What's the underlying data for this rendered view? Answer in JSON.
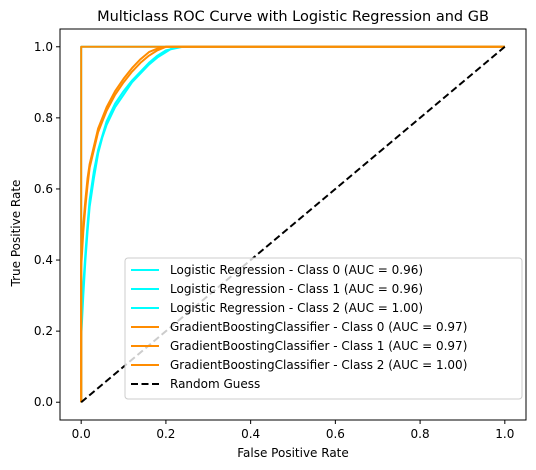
{
  "chart_data": {
    "type": "line",
    "title": "Multiclass ROC Curve with Logistic Regression and GB",
    "xlabel": "False Positive Rate",
    "ylabel": "True Positive Rate",
    "xlim": [
      -0.05,
      1.05
    ],
    "ylim": [
      -0.05,
      1.05
    ],
    "xticks": [
      0.0,
      0.2,
      0.4,
      0.6,
      0.8,
      1.0
    ],
    "yticks": [
      0.0,
      0.2,
      0.4,
      0.6,
      0.8,
      1.0
    ],
    "tick_labels_x": [
      "0.0",
      "0.2",
      "0.4",
      "0.6",
      "0.8",
      "1.0"
    ],
    "tick_labels_y": [
      "0.0",
      "0.2",
      "0.4",
      "0.6",
      "0.8",
      "1.0"
    ],
    "grid": false,
    "legend_position": "lower-right",
    "series": [
      {
        "name": "Logistic Regression - Class 0 (AUC = 0.96)",
        "color": "#00ffff",
        "dash": "solid",
        "x": [
          0.0,
          0.0,
          0.005,
          0.01,
          0.015,
          0.02,
          0.03,
          0.04,
          0.05,
          0.06,
          0.08,
          0.1,
          0.12,
          0.14,
          0.16,
          0.18,
          0.2,
          0.22,
          0.24,
          0.3,
          0.5,
          0.8,
          1.0
        ],
        "y": [
          0.0,
          0.2,
          0.33,
          0.42,
          0.5,
          0.57,
          0.65,
          0.71,
          0.75,
          0.79,
          0.84,
          0.875,
          0.905,
          0.93,
          0.955,
          0.975,
          0.99,
          0.995,
          1.0,
          1.0,
          1.0,
          1.0,
          1.0
        ]
      },
      {
        "name": "Logistic Regression - Class 1 (AUC = 0.96)",
        "color": "#00ffff",
        "dash": "solid",
        "x": [
          0.0,
          0.0,
          0.005,
          0.01,
          0.015,
          0.02,
          0.03,
          0.04,
          0.05,
          0.06,
          0.08,
          0.1,
          0.12,
          0.14,
          0.16,
          0.18,
          0.2,
          0.22,
          0.3,
          0.5,
          0.8,
          1.0
        ],
        "y": [
          0.0,
          0.18,
          0.3,
          0.4,
          0.48,
          0.55,
          0.63,
          0.7,
          0.745,
          0.78,
          0.83,
          0.865,
          0.9,
          0.925,
          0.95,
          0.97,
          0.985,
          1.0,
          1.0,
          1.0,
          1.0,
          1.0
        ]
      },
      {
        "name": "Logistic Regression - Class 2 (AUC = 1.00)",
        "color": "#00ffff",
        "dash": "solid",
        "x": [
          0.0,
          0.0,
          0.0,
          1.0
        ],
        "y": [
          0.0,
          0.995,
          1.0,
          1.0
        ]
      },
      {
        "name": "GradientBoostingClassifier - Class 0 (AUC = 0.97)",
        "color": "#ff8c00",
        "dash": "solid",
        "x": [
          0.0,
          0.0,
          0.005,
          0.01,
          0.015,
          0.02,
          0.03,
          0.04,
          0.05,
          0.06,
          0.08,
          0.1,
          0.12,
          0.14,
          0.16,
          0.18,
          0.2,
          0.3,
          0.5,
          0.8,
          1.0
        ],
        "y": [
          0.0,
          0.4,
          0.5,
          0.57,
          0.63,
          0.67,
          0.72,
          0.77,
          0.8,
          0.83,
          0.875,
          0.91,
          0.94,
          0.965,
          0.985,
          0.995,
          1.0,
          1.0,
          1.0,
          1.0,
          1.0
        ]
      },
      {
        "name": "GradientBoostingClassifier - Class 1 (AUC = 0.97)",
        "color": "#ff8c00",
        "dash": "solid",
        "x": [
          0.0,
          0.0,
          0.005,
          0.01,
          0.015,
          0.02,
          0.03,
          0.04,
          0.05,
          0.06,
          0.08,
          0.1,
          0.12,
          0.14,
          0.16,
          0.18,
          0.2,
          0.3,
          0.5,
          0.8,
          1.0
        ],
        "y": [
          0.0,
          0.38,
          0.48,
          0.55,
          0.61,
          0.66,
          0.71,
          0.76,
          0.79,
          0.82,
          0.865,
          0.9,
          0.93,
          0.955,
          0.975,
          0.99,
          1.0,
          1.0,
          1.0,
          1.0,
          1.0
        ]
      },
      {
        "name": "GradientBoostingClassifier - Class 2 (AUC = 1.00)",
        "color": "#ff8c00",
        "dash": "solid",
        "x": [
          0.0,
          0.0,
          0.0,
          1.0
        ],
        "y": [
          0.0,
          0.995,
          1.0,
          1.0
        ]
      },
      {
        "name": "Random Guess",
        "color": "#000000",
        "dash": "dashed",
        "x": [
          0.0,
          1.0
        ],
        "y": [
          0.0,
          1.0
        ]
      }
    ]
  }
}
